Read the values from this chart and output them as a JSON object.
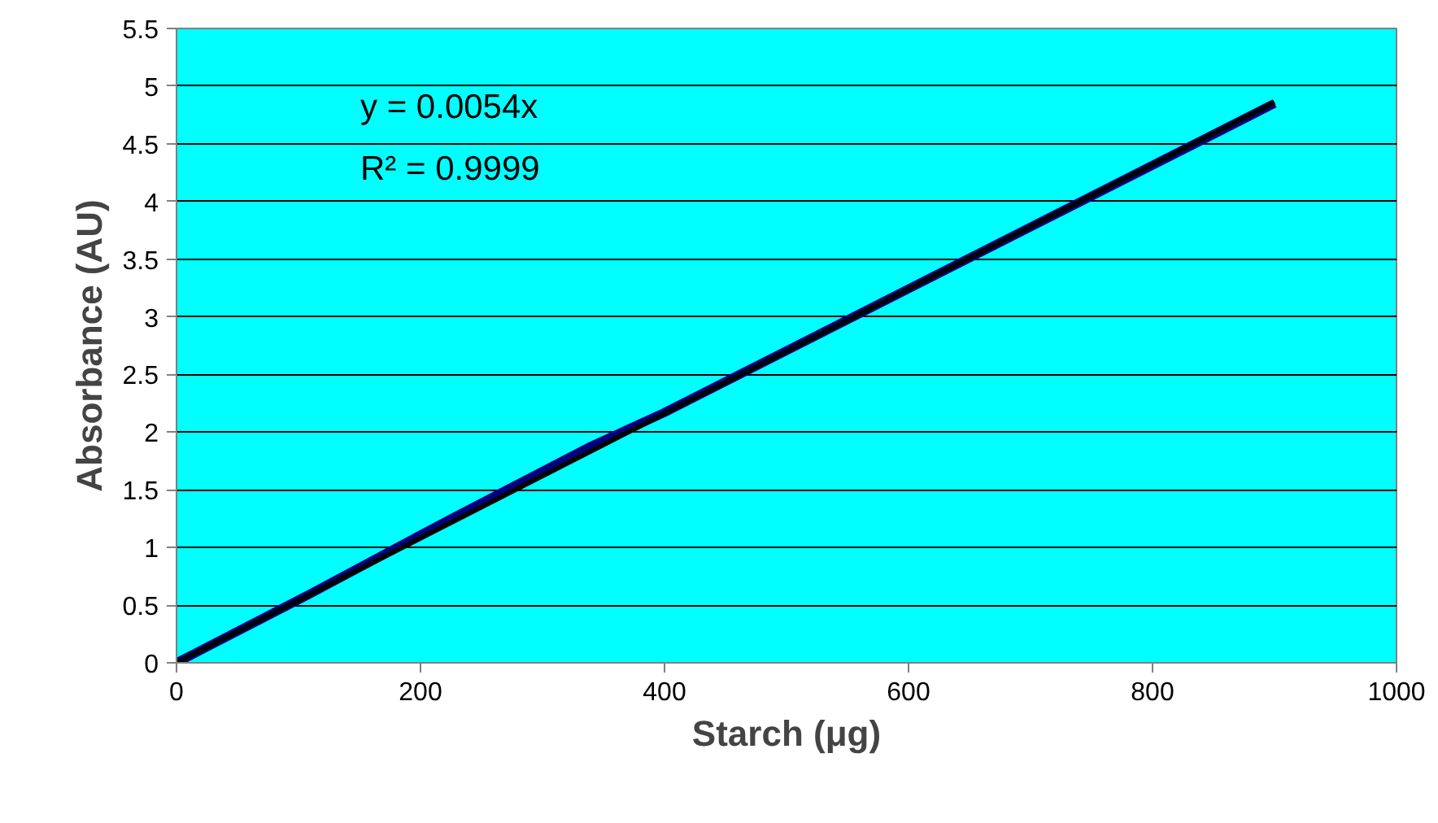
{
  "chart_data": {
    "type": "line",
    "xlabel": "Starch (μg)",
    "ylabel": "Absorbance (AU)",
    "xlim": [
      0,
      1000
    ],
    "xticks": [
      0,
      200,
      400,
      600,
      800,
      1000
    ],
    "ylim": [
      0,
      5.5
    ],
    "yticks": [
      0,
      0.5,
      1,
      1.5,
      2,
      2.5,
      3,
      3.5,
      4,
      4.5,
      5,
      5.5
    ],
    "grid": "y",
    "marker": "none",
    "line_style": "solid",
    "annotations": [
      "y = 0.0054x",
      "R² = 0.9999"
    ],
    "series": [
      {
        "color": "#000080",
        "x": [
          0,
          110,
          225,
          340,
          400,
          900
        ],
        "values": [
          0,
          0.6,
          1.25,
          1.88,
          2.17,
          4.85
        ]
      },
      {
        "type": "line",
        "color": "#000000",
        "x": [
          0,
          900
        ],
        "values": [
          0,
          4.86
        ]
      }
    ]
  }
}
